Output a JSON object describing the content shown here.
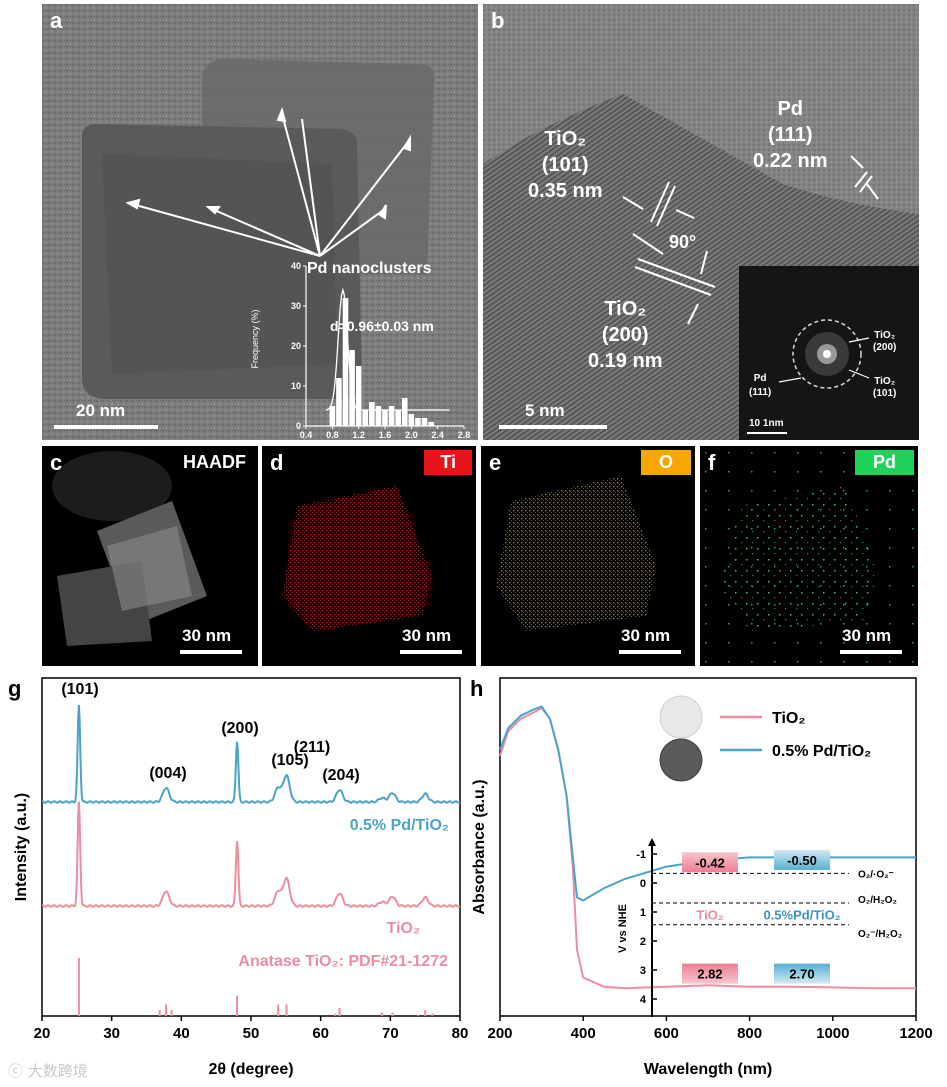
{
  "panel_a": {
    "label": "a",
    "annotation": "Pd nanoclusters",
    "scale": "20 nm",
    "inset": {
      "ylabel": "Frequency (%)",
      "yticks": [
        "0",
        "10",
        "20",
        "30",
        "40"
      ],
      "xticks": [
        "0.4",
        "0.8",
        "1.2",
        "1.6",
        "2.0",
        "2.4",
        "2.8"
      ],
      "annotation": "d=0.96±0.03 nm"
    }
  },
  "panel_b": {
    "label": "b",
    "tio2_101": [
      "TiO₂",
      "(101)",
      "0.35 nm"
    ],
    "tio2_200": [
      "TiO₂",
      "(200)",
      "0.19 nm"
    ],
    "pd_111": [
      "Pd",
      "(111)",
      "0.22 nm"
    ],
    "angle": "90°",
    "scale": "5 nm",
    "fft": {
      "tio2_200": [
        "TiO₂",
        "(200)"
      ],
      "tio2_101": [
        "TiO₂",
        "(101)"
      ],
      "pd_111": [
        "Pd",
        "(111)"
      ],
      "scale": "10 1nm"
    }
  },
  "panel_c": {
    "label": "c",
    "tag": "HAADF",
    "scale": "30 nm"
  },
  "panel_d": {
    "label": "d",
    "tag": "Ti",
    "tag_color": "#e8141c",
    "scale": "30 nm"
  },
  "panel_e": {
    "label": "e",
    "tag": "O",
    "tag_color": "#f7a800",
    "scale": "30 nm"
  },
  "panel_f": {
    "label": "f",
    "tag": "Pd",
    "tag_color": "#1ed25a",
    "scale": "30 nm"
  },
  "panel_g": {
    "label": "g",
    "peak_labels": [
      "(101)",
      "(004)",
      "(200)",
      "(105)",
      "(211)",
      "(204)"
    ],
    "series_pd": "0.5% Pd/TiO₂",
    "series_tio2": "TiO₂",
    "reference": "Anatase TiO₂: PDF#21-1272"
  },
  "panel_h": {
    "label": "h",
    "inset": {
      "ylabel": "V vs NHE",
      "yticks": [
        "-1",
        "0",
        "1",
        "2",
        "3",
        "4"
      ],
      "cb_tio2": "-0.42",
      "cb_pd": "-0.50",
      "vb_tio2": "2.82",
      "vb_pd": "2.70",
      "name_tio2": "TiO₂",
      "name_pd": "0.5%Pd/TiO₂",
      "levels": [
        "O₂/·O₂⁻",
        "O₂/H₂O₂",
        "O₂⁻/H₂O₂"
      ]
    }
  },
  "chart_data": [
    {
      "type": "bar",
      "title": "",
      "xlabel": "",
      "ylabel": "Frequency (%)",
      "categories": [
        "0.8",
        "0.9",
        "1.0",
        "1.1",
        "1.2",
        "1.3",
        "1.4",
        "1.5",
        "1.6",
        "1.7",
        "1.8",
        "1.9",
        "2.0",
        "2.1",
        "2.2",
        "2.3"
      ],
      "values": [
        5,
        12,
        32,
        19,
        15,
        4,
        6,
        5,
        4,
        5,
        4,
        7,
        3,
        2,
        2,
        1
      ],
      "xlim": [
        0.4,
        2.8
      ],
      "ylim": [
        0,
        40
      ],
      "fit_peak": 0.96,
      "annotation": "d=0.96±0.03 nm"
    },
    {
      "type": "line",
      "title": "",
      "xlabel": "2θ (degree)",
      "ylabel": "Intensity (a.u.)",
      "xlim": [
        20,
        80
      ],
      "xticks": [
        20,
        30,
        40,
        50,
        60,
        70,
        80
      ],
      "series": [
        {
          "name": "0.5% Pd/TiO₂",
          "color": "#4aa3c8",
          "peaks": [
            {
              "x": 25.3,
              "height": 95
            },
            {
              "x": 37.8,
              "height": 14
            },
            {
              "x": 48.0,
              "height": 60
            },
            {
              "x": 53.9,
              "height": 14
            },
            {
              "x": 55.1,
              "height": 26
            },
            {
              "x": 62.7,
              "height": 12
            },
            {
              "x": 68.8,
              "height": 4
            },
            {
              "x": 70.3,
              "height": 9
            },
            {
              "x": 75.0,
              "height": 8
            }
          ]
        },
        {
          "name": "TiO₂",
          "color": "#ec8da0",
          "peaks": [
            {
              "x": 25.3,
              "height": 98
            },
            {
              "x": 37.8,
              "height": 14
            },
            {
              "x": 48.0,
              "height": 62
            },
            {
              "x": 53.9,
              "height": 14
            },
            {
              "x": 55.1,
              "height": 26
            },
            {
              "x": 62.7,
              "height": 12
            },
            {
              "x": 68.8,
              "height": 4
            },
            {
              "x": 70.3,
              "height": 9
            },
            {
              "x": 75.0,
              "height": 8
            }
          ]
        }
      ],
      "reference_lines": {
        "name": "Anatase TiO₂: PDF#21-1272",
        "color": "#ec8da0",
        "x": [
          25.3,
          36.9,
          37.8,
          38.6,
          48.0,
          53.9,
          55.1,
          62.1,
          62.7,
          68.8,
          70.3,
          74.0,
          75.0,
          76.0
        ],
        "height": [
          100,
          10,
          20,
          10,
          35,
          20,
          20,
          4,
          14,
          6,
          6,
          2,
          10,
          4
        ]
      }
    },
    {
      "type": "line",
      "title": "",
      "xlabel": "Wavelength (nm)",
      "ylabel": "Absorbance (a.u.)",
      "xlim": [
        200,
        1200
      ],
      "xticks": [
        200,
        400,
        600,
        800,
        1000,
        1200
      ],
      "series": [
        {
          "name": "TiO₂",
          "color": "#ec8da0",
          "x": [
            200,
            220,
            250,
            280,
            300,
            320,
            340,
            360,
            375,
            385,
            400,
            450,
            500,
            600,
            700,
            800,
            900,
            1000,
            1100,
            1200
          ],
          "y": [
            0.78,
            0.86,
            0.9,
            0.92,
            0.935,
            0.9,
            0.8,
            0.65,
            0.42,
            0.15,
            0.06,
            0.03,
            0.025,
            0.03,
            0.035,
            0.03,
            0.03,
            0.028,
            0.025,
            0.025
          ]
        },
        {
          "name": "0.5% Pd/TiO₂",
          "color": "#4aa3c8",
          "x": [
            200,
            220,
            250,
            280,
            300,
            320,
            340,
            360,
            375,
            385,
            400,
            450,
            500,
            600,
            700,
            800,
            900,
            1000,
            1100,
            1200
          ],
          "y": [
            0.8,
            0.87,
            0.91,
            0.93,
            0.94,
            0.9,
            0.8,
            0.65,
            0.45,
            0.32,
            0.31,
            0.35,
            0.38,
            0.42,
            0.44,
            0.45,
            0.45,
            0.45,
            0.45,
            0.45
          ]
        }
      ]
    }
  ]
}
